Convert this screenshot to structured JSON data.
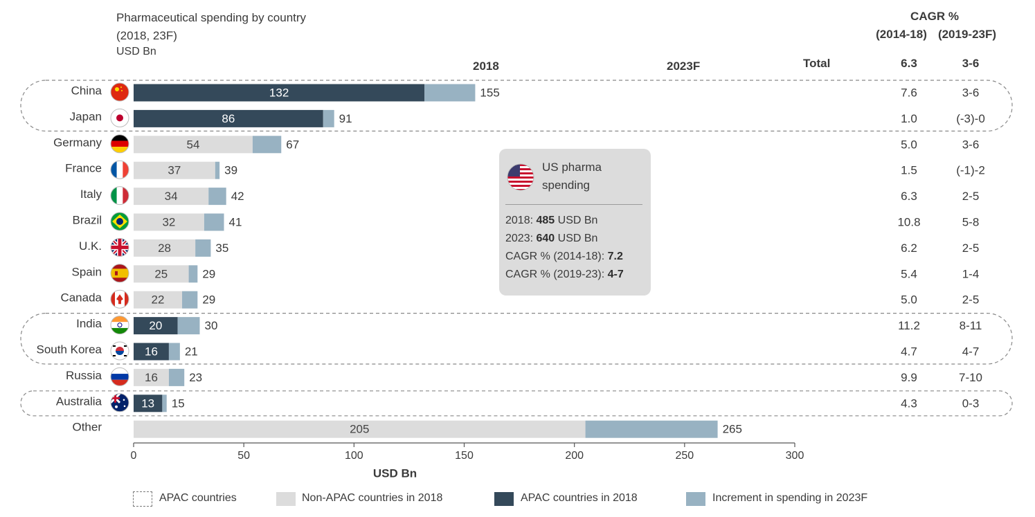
{
  "title_lines": [
    "Pharmaceutical spending by country",
    "(2018, 23F)"
  ],
  "unit": "USD Bn",
  "headers": {
    "y2018": "2018",
    "y2023": "2023F",
    "total": "Total",
    "cagr_title": "CAGR %",
    "cagr_p1": "(2014-18)",
    "cagr_p2": "(2019-23F)",
    "cagr_total_1": "6.3",
    "cagr_total_2": "3-6"
  },
  "colors": {
    "apac": "#34495a",
    "non_apac": "#dcdcdc",
    "increment": "#98b2c2",
    "axis": "#555555"
  },
  "callout": {
    "title_lines": [
      "US pharma",
      "spending"
    ],
    "icon": "us-flag-icon",
    "l1_pre": "2018: ",
    "l1_val": "485",
    "l1_post": " USD Bn",
    "l2_pre": "2023: ",
    "l2_val": "640",
    "l2_post": " USD Bn",
    "l3_pre": "CAGR % (2014-18): ",
    "l3_val": "7.2",
    "l4_pre": "CAGR % (2019-23): ",
    "l4_val": "4-7"
  },
  "legend": {
    "apac_group": "APAC countries",
    "non_apac": "Non-APAC countries in 2018",
    "apac": "APAC countries in 2018",
    "increment": "Increment in spending in 2023F"
  },
  "chart_data": {
    "type": "bar",
    "orientation": "horizontal",
    "stacked": true,
    "xlabel": "USD Bn",
    "xlim": [
      0,
      300
    ],
    "xticks": [
      0,
      50,
      100,
      150,
      200,
      250,
      300
    ],
    "categories": [
      "China",
      "Japan",
      "Germany",
      "France",
      "Italy",
      "Brazil",
      "U.K.",
      "Spain",
      "Canada",
      "India",
      "South Korea",
      "Russia",
      "Australia",
      "Other"
    ],
    "value_2018": [
      132,
      86,
      54,
      37,
      34,
      32,
      28,
      25,
      22,
      20,
      16,
      16,
      13,
      205
    ],
    "value_2023F": [
      155,
      91,
      67,
      39,
      42,
      41,
      35,
      29,
      29,
      30,
      21,
      23,
      15,
      265
    ],
    "apac": [
      true,
      true,
      false,
      false,
      false,
      false,
      false,
      false,
      false,
      true,
      true,
      false,
      true,
      false
    ],
    "flags": [
      "china-flag-icon",
      "japan-flag-icon",
      "germany-flag-icon",
      "france-flag-icon",
      "italy-flag-icon",
      "brazil-flag-icon",
      "uk-flag-icon",
      "spain-flag-icon",
      "canada-flag-icon",
      "india-flag-icon",
      "south-korea-flag-icon",
      "russia-flag-icon",
      "australia-flag-icon",
      ""
    ],
    "cagr_2014_18": [
      "7.6",
      "1.0",
      "5.0",
      "1.5",
      "6.3",
      "10.8",
      "6.2",
      "5.4",
      "5.0",
      "11.2",
      "4.7",
      "9.9",
      "4.3",
      ""
    ],
    "cagr_2019_23F": [
      "3-6",
      "(-3)-0",
      "3-6",
      "(-1)-2",
      "2-5",
      "5-8",
      "2-5",
      "1-4",
      "2-5",
      "8-11",
      "4-7",
      "7-10",
      "0-3",
      ""
    ],
    "apac_groups": [
      [
        "China",
        "Japan"
      ],
      [
        "India",
        "South Korea"
      ],
      [
        "Australia"
      ]
    ],
    "legend_position": "bottom"
  }
}
